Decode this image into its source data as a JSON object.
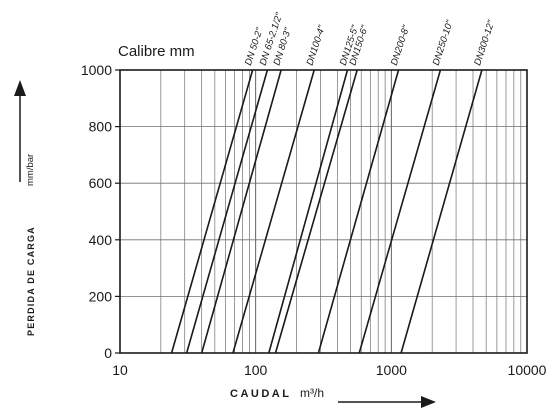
{
  "chart_data": {
    "type": "line",
    "title": "Calibre mm",
    "xlabel": "CAUDAL",
    "xunit": "m³/h",
    "ylabel": "PERDIDA DE CARGA",
    "yunit": "mm/bar",
    "xscale": "log",
    "xlim": [
      10,
      10000
    ],
    "ylim": [
      0,
      1000
    ],
    "xticks": [
      "10",
      "100",
      "1000",
      "10000"
    ],
    "yticks": [
      "0",
      "200",
      "400",
      "600",
      "800",
      "1000"
    ],
    "grid": true,
    "series": [
      {
        "name": "DN 50-2\"",
        "x": [
          24,
          95
        ],
        "y": [
          0,
          1000
        ]
      },
      {
        "name": "DN 65-2.1/2\"",
        "x": [
          31,
          122
        ],
        "y": [
          0,
          1000
        ]
      },
      {
        "name": "DN 80-3\"",
        "x": [
          40,
          154
        ],
        "y": [
          0,
          1000
        ]
      },
      {
        "name": "DN100-4\"",
        "x": [
          68,
          270
        ],
        "y": [
          0,
          1000
        ]
      },
      {
        "name": "DN125-5\"",
        "x": [
          125,
          475
        ],
        "y": [
          0,
          1000
        ]
      },
      {
        "name": "DN150-6\"",
        "x": [
          140,
          560
        ],
        "y": [
          0,
          1000
        ]
      },
      {
        "name": "DN200-8\"",
        "x": [
          290,
          1130
        ],
        "y": [
          0,
          1000
        ]
      },
      {
        "name": "DN250-10\"",
        "x": [
          580,
          2300
        ],
        "y": [
          0,
          1000
        ]
      },
      {
        "name": "DN300-12\"",
        "x": [
          1180,
          4650
        ],
        "y": [
          0,
          1000
        ]
      }
    ]
  }
}
